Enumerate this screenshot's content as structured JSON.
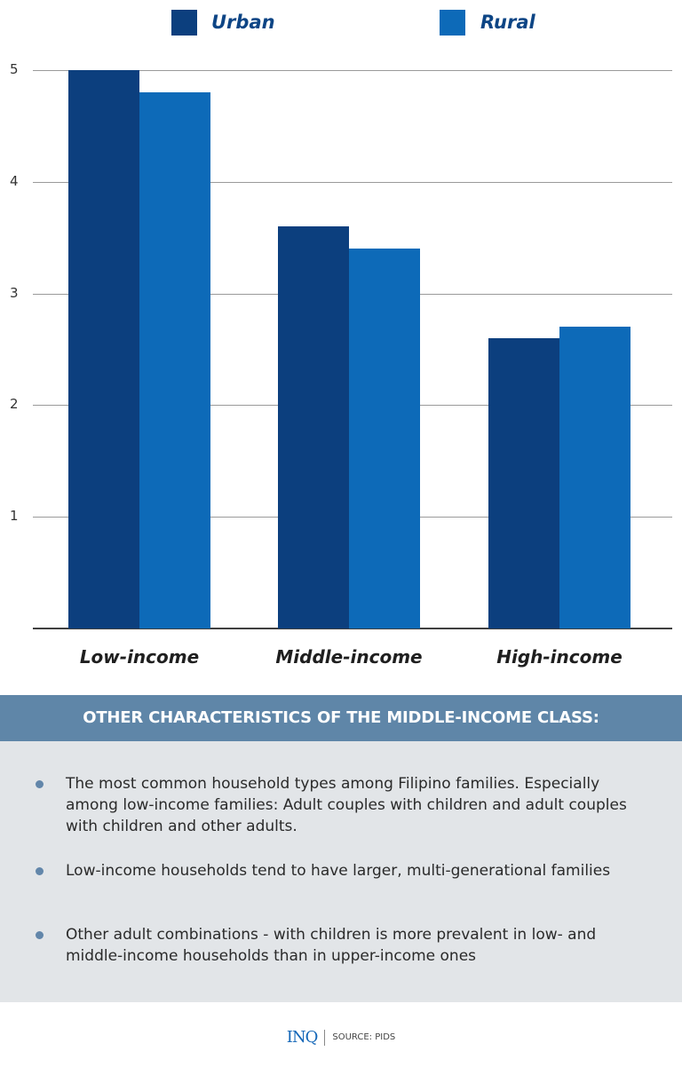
{
  "legend": [
    {
      "name": "Urban",
      "color": "#0c3f7e"
    },
    {
      "name": "Rural",
      "color": "#0d6ab8"
    }
  ],
  "yaxis": {
    "ticks": [
      "5",
      "4",
      "3",
      "2",
      "1"
    ]
  },
  "xaxis": {
    "labels": [
      "Low-income",
      "Middle-income",
      "High-income"
    ]
  },
  "chart_data": {
    "type": "bar",
    "title": "",
    "xlabel": "",
    "ylabel": "",
    "categories": [
      "Low-income",
      "Middle-income",
      "High-income"
    ],
    "series": [
      {
        "name": "Urban",
        "color": "#0c3f7e",
        "values": [
          5.0,
          3.6,
          2.6
        ]
      },
      {
        "name": "Rural",
        "color": "#0d6ab8",
        "values": [
          4.8,
          3.4,
          2.7
        ]
      }
    ],
    "ylim": [
      0,
      5
    ],
    "yticks": [
      1,
      2,
      3,
      4,
      5
    ],
    "grid": true,
    "legend_position": "top"
  },
  "panel": {
    "title": "OTHER CHARACTERISTICS OF THE MIDDLE-INCOME CLASS:",
    "bullets": [
      "The most common household types among Filipino families. Especially among low-income families: Adult couples with children and adult couples with children and other adults.",
      "Low-income households tend to have larger, multi-generational families",
      "Other adult combinations - with children is more prevalent in low- and middle-income households than in upper-income ones"
    ]
  },
  "footer": {
    "logo": "INQ",
    "source": "SOURCE: PIDS"
  }
}
